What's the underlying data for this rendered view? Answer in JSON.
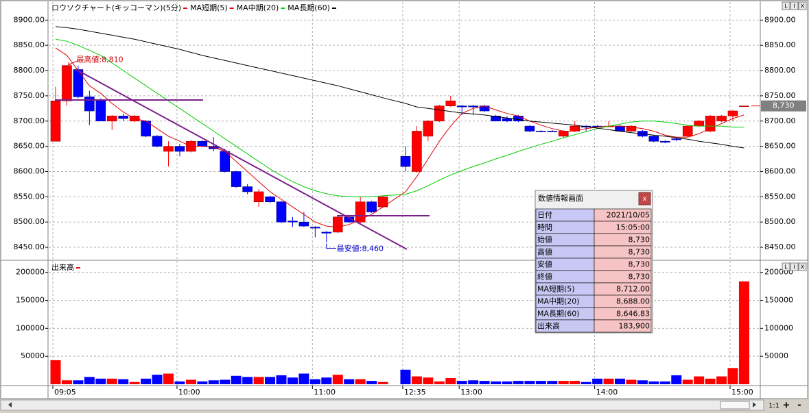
{
  "chart_data": [
    {
      "type": "candlestick",
      "title": "ロウソクチャート(キッコーマン)(5分)",
      "up_color": "#ff0000",
      "down_color": "#0000ff",
      "open": [
        8660,
        8740,
        8802,
        8748,
        8740,
        8700,
        8710,
        8700,
        8700,
        8670,
        8640,
        8650,
        8640,
        8660,
        8650,
        8640,
        8600,
        8570,
        8540,
        8550,
        8540,
        8502,
        8500,
        8490,
        8480,
        8480,
        8510,
        8500,
        8540,
        8530,
        8630,
        8600,
        8670,
        8700,
        8730,
        8730,
        8730,
        8730,
        8710,
        8705,
        8710,
        8690,
        8680,
        8680,
        8670,
        8680,
        8690,
        8690,
        8689,
        8690,
        8680,
        8680,
        8670,
        8660,
        8665,
        8670,
        8690,
        8680,
        8700,
        8710,
        8730
      ],
      "high": [
        8768,
        8810,
        8810,
        8760,
        8745,
        8712,
        8715,
        8712,
        8702,
        8672,
        8660,
        8655,
        8662,
        8662,
        8668,
        8645,
        8602,
        8575,
        8565,
        8552,
        8542,
        8510,
        8520,
        8492,
        8482,
        8512,
        8512,
        8550,
        8542,
        8552,
        8650,
        8690,
        8702,
        8732,
        8750,
        8732,
        8732,
        8732,
        8712,
        8710,
        8712,
        8692,
        8682,
        8682,
        8682,
        8700,
        8692,
        8692,
        8700,
        8692,
        8692,
        8682,
        8672,
        8662,
        8668,
        8692,
        8702,
        8712,
        8712,
        8722,
        8730
      ],
      "low": [
        8660,
        8730,
        8745,
        8692,
        8700,
        8682,
        8700,
        8698,
        8668,
        8648,
        8610,
        8630,
        8638,
        8648,
        8640,
        8598,
        8568,
        8555,
        8530,
        8538,
        8498,
        8490,
        8490,
        8470,
        8460,
        8478,
        8498,
        8498,
        8518,
        8528,
        8600,
        8598,
        8660,
        8698,
        8728,
        8712,
        8712,
        8718,
        8700,
        8698,
        8698,
        8678,
        8678,
        8678,
        8668,
        8678,
        8680,
        8688,
        8688,
        8678,
        8678,
        8668,
        8658,
        8656,
        8660,
        8668,
        8688,
        8678,
        8698,
        8700,
        8730
      ],
      "close": [
        8740,
        8810,
        8748,
        8720,
        8700,
        8710,
        8705,
        8710,
        8670,
        8650,
        8650,
        8640,
        8660,
        8650,
        8645,
        8600,
        8570,
        8560,
        8560,
        8540,
        8500,
        8500,
        8492,
        8488,
        8478,
        8510,
        8500,
        8540,
        8520,
        8550,
        8610,
        8680,
        8700,
        8730,
        8740,
        8728,
        8728,
        8720,
        8700,
        8700,
        8700,
        8680,
        8679,
        8679,
        8680,
        8690,
        8688,
        8689,
        8690,
        8680,
        8690,
        8670,
        8660,
        8658,
        8663,
        8690,
        8700,
        8710,
        8710,
        8720,
        8730
      ],
      "series": [
        {
          "name": "MA短期(5)",
          "color": "#e00000",
          "values": [
            8845,
            8830,
            8800,
            8770,
            8755,
            8735,
            8718,
            8705,
            8700,
            8685,
            8670,
            8660,
            8650,
            8650,
            8648,
            8640,
            8620,
            8600,
            8580,
            8560,
            8545,
            8530,
            8515,
            8500,
            8492,
            8490,
            8495,
            8505,
            8515,
            8530,
            8560,
            8590,
            8625,
            8660,
            8690,
            8715,
            8725,
            8730,
            8722,
            8715,
            8710,
            8700,
            8692,
            8685,
            8680,
            8680,
            8685,
            8688,
            8690,
            8690,
            8688,
            8685,
            8680,
            8672,
            8668,
            8668,
            8675,
            8685,
            8695,
            8705,
            8712
          ]
        },
        {
          "name": "MA中期(20)",
          "color": "#00cc00",
          "values": [
            8862,
            8858,
            8850,
            8840,
            8830,
            8815,
            8800,
            8785,
            8770,
            8755,
            8740,
            8725,
            8710,
            8695,
            8680,
            8665,
            8650,
            8635,
            8620,
            8605,
            8592,
            8580,
            8570,
            8562,
            8556,
            8552,
            8550,
            8550,
            8550,
            8552,
            8555,
            8562,
            8572,
            8583,
            8593,
            8602,
            8610,
            8617,
            8625,
            8632,
            8640,
            8647,
            8654,
            8660,
            8667,
            8673,
            8679,
            8685,
            8690,
            8694,
            8698,
            8700,
            8700,
            8698,
            8695,
            8692,
            8690,
            8690,
            8690,
            8688,
            8688
          ]
        },
        {
          "name": "MA長期(60)",
          "color": "#000000",
          "values": [
            8887,
            8885,
            8882,
            8878,
            8874,
            8870,
            8866,
            8862,
            8857,
            8852,
            8847,
            8842,
            8836,
            8830,
            8825,
            8820,
            8815,
            8810,
            8805,
            8800,
            8795,
            8790,
            8785,
            8780,
            8775,
            8770,
            8764,
            8758,
            8752,
            8746,
            8735,
            8728,
            8725,
            8722,
            8719,
            8716,
            8714,
            8712,
            8709,
            8706,
            8703,
            8700,
            8698,
            8696,
            8694,
            8692,
            8689,
            8686,
            8683,
            8680,
            8677,
            8675,
            8672,
            8670,
            8667,
            8664,
            8660,
            8657,
            8654,
            8650,
            8646.83
          ]
        }
      ],
      "ylim": [
        8427,
        8933
      ],
      "yticks": [
        {
          "value": 8450,
          "label": "8450.00"
        },
        {
          "value": 8500,
          "label": "8500.00"
        },
        {
          "value": 8550,
          "label": "8550.00"
        },
        {
          "value": 8600,
          "label": "8600.00"
        },
        {
          "value": 8650,
          "label": "8650.00"
        },
        {
          "value": 8700,
          "label": "8700.00"
        },
        {
          "value": 8750,
          "label": "8750.00"
        },
        {
          "value": 8800,
          "label": "8800.00"
        },
        {
          "value": 8850,
          "label": "8850.00"
        },
        {
          "value": 8900,
          "label": "8900.00"
        }
      ],
      "grid": true,
      "high_label": "最高値:8,810",
      "low_label": "最安値:8,460",
      "last_price": {
        "value": 8730,
        "label": "8,730"
      }
    },
    {
      "type": "bar",
      "title": "出来高",
      "color": "#ff0000",
      "categories": [
        "09:05",
        null,
        null,
        null,
        null,
        null,
        null,
        null,
        null,
        null,
        null,
        "10:00",
        null,
        null,
        null,
        null,
        null,
        null,
        null,
        null,
        null,
        null,
        null,
        "11:00",
        null,
        null,
        null,
        null,
        null,
        null,
        "12:35",
        null,
        null,
        null,
        null,
        "13:00",
        null,
        null,
        null,
        null,
        null,
        null,
        null,
        null,
        null,
        null,
        null,
        "14:00",
        null,
        null,
        null,
        null,
        null,
        null,
        null,
        null,
        null,
        null,
        null,
        "15:00",
        null
      ],
      "values": [
        43000,
        7000,
        7000,
        13000,
        10000,
        10000,
        9000,
        4000,
        10000,
        17000,
        19000,
        5000,
        8000,
        5000,
        7000,
        8000,
        15000,
        13000,
        13000,
        13000,
        16000,
        12000,
        19000,
        9000,
        12000,
        17000,
        9000,
        9000,
        6000,
        4000,
        26000,
        14000,
        12000,
        5000,
        11000,
        6000,
        7000,
        6000,
        5000,
        5000,
        6000,
        6000,
        6000,
        6000,
        6000,
        6000,
        4000,
        10000,
        10000,
        10000,
        8000,
        7000,
        5000,
        5000,
        16000,
        8000,
        14000,
        10000,
        14000,
        29000,
        183900
      ],
      "ylim": [
        0,
        218000
      ],
      "yticks": [
        50000,
        100000,
        150000,
        200000
      ],
      "grid": true
    }
  ],
  "info_panel": {
    "title": "数値情報画面",
    "close": "x",
    "rows": [
      [
        "日付",
        "2021/10/05"
      ],
      [
        "時間",
        "15:05:00"
      ],
      [
        "始値",
        "8,730"
      ],
      [
        "高値",
        "8,730"
      ],
      [
        "安値",
        "8,730"
      ],
      [
        "終値",
        "8,730"
      ],
      [
        "MA短期(5)",
        "8,712.00"
      ],
      [
        "MA中期(20)",
        "8,688.00"
      ],
      [
        "MA長期(60)",
        "8,646.83"
      ],
      [
        "出来高",
        "183,900"
      ]
    ]
  },
  "ui": {
    "panel_buttons": [
      "L",
      "I",
      "X"
    ],
    "zoom": "1:1",
    "zoom_in": "+",
    "zoom_out": "-"
  }
}
